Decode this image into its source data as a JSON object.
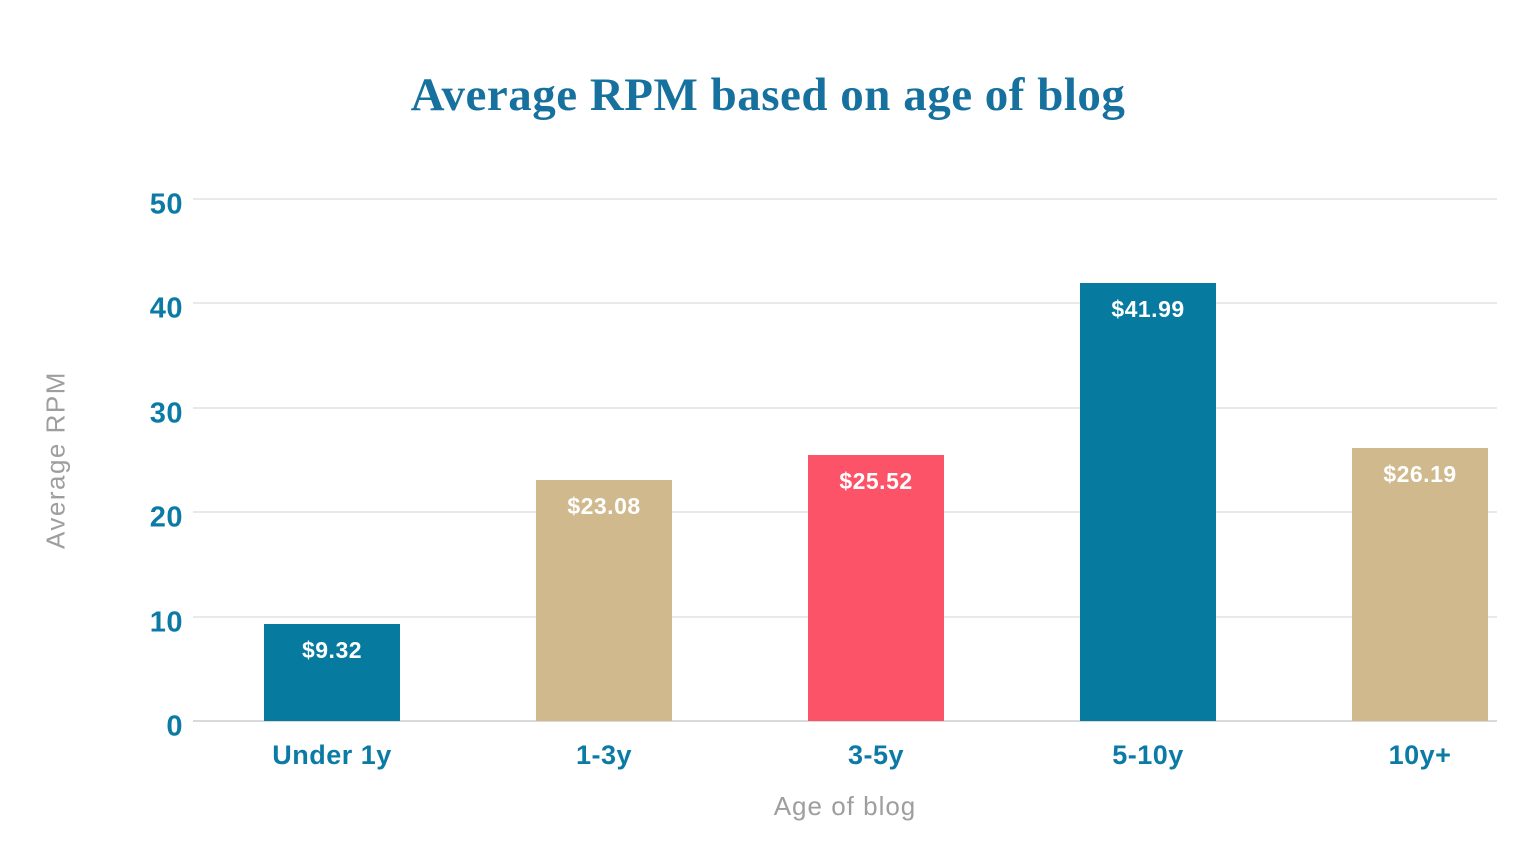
{
  "chart_data": {
    "type": "bar",
    "title": "Average RPM based on age of blog",
    "xlabel": "Age of blog",
    "ylabel": "Average RPM",
    "categories": [
      "Under 1y",
      "1-3y",
      "3-5y",
      "5-10y",
      "10y+"
    ],
    "values": [
      9.32,
      23.08,
      25.52,
      41.99,
      26.19
    ],
    "value_labels": [
      "$9.32",
      "$23.08",
      "$25.52",
      "$41.99",
      "$26.19"
    ],
    "bar_colors": [
      "#067a9f",
      "#cfb98d",
      "#fd5368",
      "#067a9f",
      "#cfb98d"
    ],
    "ylim": [
      0,
      50
    ],
    "yticks": [
      0,
      10,
      20,
      30,
      40,
      50
    ],
    "grid": "horizontal",
    "legend": "none"
  },
  "colors": {
    "title_text": "#17719e",
    "axis_tick_text": "#0b7ba6",
    "muted_text": "#9e9e9e",
    "gridline": "#e9e9e9",
    "baseline": "#d9d9d9",
    "bar_label_text": "#ffffff",
    "background": "#ffffff"
  }
}
